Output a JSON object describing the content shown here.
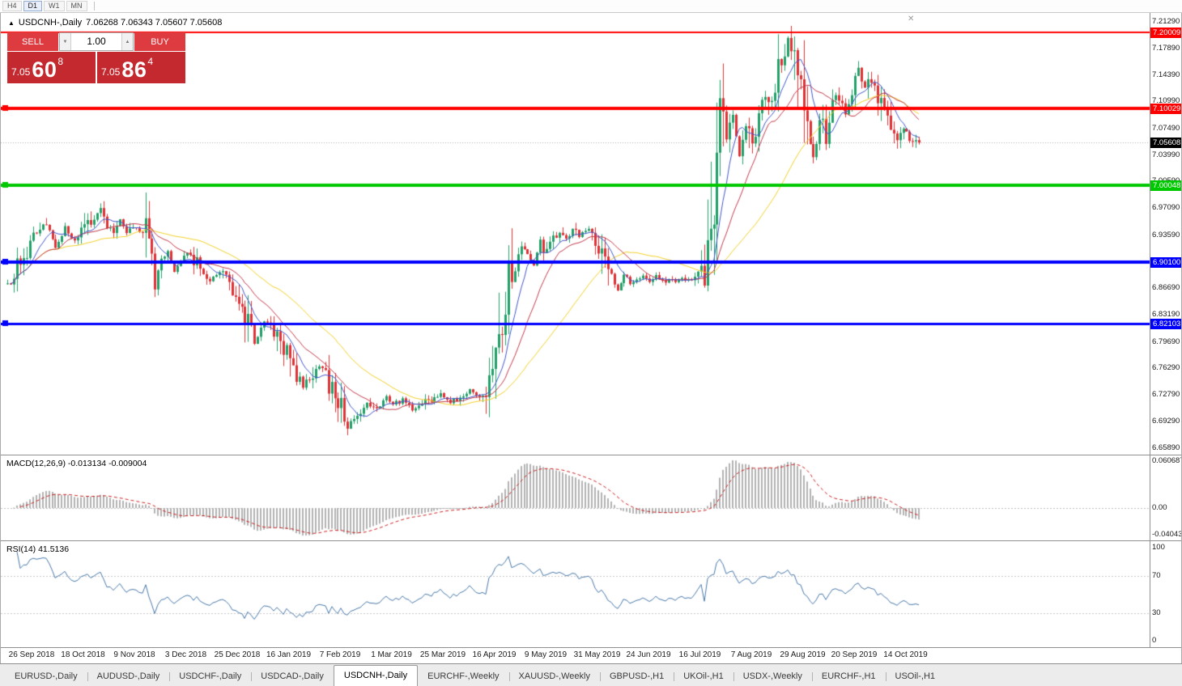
{
  "toolbar": {
    "timeframes": [
      "H4",
      "D1",
      "W1",
      "MN"
    ],
    "active": "D1"
  },
  "chart_header": {
    "collapse_icon": "▲",
    "symbol_period": "USDCNH-,Daily",
    "ohlc": "7.06268 7.06343 7.05607 7.05608"
  },
  "one_click": {
    "sell_label": "SELL",
    "buy_label": "BUY",
    "volume": "1.00",
    "vol_down_icon": "▼",
    "vol_up_icon": "▲",
    "sell_price_prefix": "7.05",
    "sell_price_big": "60",
    "sell_price_sup": "8",
    "buy_price_prefix": "7.05",
    "buy_price_big": "86",
    "buy_price_sup": "4",
    "button_color": "#DD3B40",
    "price_box_color": "#C4292F"
  },
  "price_axis": {
    "labels": [
      "7.21290",
      "7.17890",
      "7.14390",
      "7.10990",
      "7.07490",
      "7.03990",
      "7.00590",
      "6.97090",
      "6.93590",
      "6.90190",
      "6.86690",
      "6.83190",
      "6.79690",
      "6.76290",
      "6.72790",
      "6.69290",
      "6.65890"
    ]
  },
  "hlines": [
    {
      "price": 7.20009,
      "label": "7.20009",
      "color": "#FF0000",
      "width": 2,
      "handle": false
    },
    {
      "price": 7.10029,
      "label": "7.10029",
      "color": "#FF0000",
      "width": 4,
      "handle": true
    },
    {
      "price": 7.00048,
      "label": "7.00048",
      "color": "#00C800",
      "width": 4,
      "handle": true
    },
    {
      "price": 6.901,
      "label": "6.90100",
      "color": "#0000FF",
      "width": 4,
      "handle": true
    },
    {
      "price": 6.82103,
      "label": "6.82103",
      "color": "#0000FF",
      "width": 3,
      "handle": true
    }
  ],
  "bid": {
    "price": 7.05608,
    "label": "7.05608",
    "tag_bg": "#000000"
  },
  "macd_panel": {
    "label": "MACD(12,26,9) -0.013134 -0.009004",
    "axis_top": "0.060687",
    "axis_zero": "0.00",
    "axis_bottom": "-0.04043"
  },
  "rsi_panel": {
    "label": "RSI(14) 41.5136",
    "axis_labels": [
      {
        "text": "100",
        "value": 100
      },
      {
        "text": "70",
        "value": 70
      },
      {
        "text": "30",
        "value": 30
      },
      {
        "text": "0",
        "value": 0
      }
    ],
    "levels": [
      70,
      30
    ]
  },
  "date_axis": {
    "labels": [
      "26 Sep 2018",
      "18 Oct 2018",
      "9 Nov 2018",
      "3 Dec 2018",
      "25 Dec 2018",
      "16 Jan 2019",
      "7 Feb 2019",
      "1 Mar 2019",
      "25 Mar 2019",
      "16 Apr 2019",
      "9 May 2019",
      "31 May 2019",
      "24 Jun 2019",
      "16 Jul 2019",
      "7 Aug 2019",
      "29 Aug 2019",
      "20 Sep 2019",
      "14 Oct 2019"
    ]
  },
  "tabs": {
    "active_index": 4,
    "items": [
      "EURUSD-,Daily",
      "AUDUSD-,Daily",
      "USDCHF-,Daily",
      "USDCAD-,Daily",
      "USDCNH-,Daily",
      "EURCHF-,Weekly",
      "XAUUSD-,Weekly",
      "GBPUSD-,H1",
      "UKOil-,H1",
      "USDX-,Weekly",
      "EURCHF-,H1",
      "USOil-,H1"
    ]
  },
  "chart_data": {
    "type": "candlestick",
    "symbol": "USDCNH",
    "timeframe": "Daily",
    "title": "USDCNH-,Daily",
    "last_quote": {
      "open": 7.06268,
      "high": 7.06343,
      "low": 7.05607,
      "close": 7.05608
    },
    "visible_range": {
      "price_min": 6.65,
      "price_max": 7.225
    },
    "candle_count": 285,
    "ma_periods": {
      "fast": 8,
      "mid": 17,
      "slow": 38
    },
    "indicators": {
      "macd": "12,26,9",
      "macd_values": [
        -0.013134,
        -0.009004
      ],
      "rsi_period": 14,
      "rsi_value": 41.5136
    },
    "colors": {
      "up": "#22A06A",
      "down": "#E03236",
      "ma_fast": "#4056C8",
      "ma_mid": "#C13A4B",
      "ma_slow": "#F2CF27",
      "macd_hist": "#B2B2B2",
      "macd_signal": "#CC2222",
      "rsi": "#4878A8",
      "bid_line": "#AFAFAF"
    },
    "price_path_anchors": [
      [
        0,
        6.872
      ],
      [
        3,
        6.896
      ],
      [
        6,
        6.916
      ],
      [
        9,
        6.942
      ],
      [
        12,
        6.952
      ],
      [
        15,
        6.921
      ],
      [
        18,
        6.944
      ],
      [
        21,
        6.928
      ],
      [
        24,
        6.946
      ],
      [
        27,
        6.958
      ],
      [
        29,
        6.974
      ],
      [
        31,
        6.949
      ],
      [
        33,
        6.942
      ],
      [
        35,
        6.956
      ],
      [
        37,
        6.938
      ],
      [
        40,
        6.946
      ],
      [
        43,
        6.938
      ],
      [
        45,
        6.918
      ],
      [
        46,
        6.872
      ],
      [
        48,
        6.902
      ],
      [
        50,
        6.913
      ],
      [
        52,
        6.887
      ],
      [
        54,
        6.902
      ],
      [
        56,
        6.912
      ],
      [
        58,
        6.902
      ],
      [
        60,
        6.892
      ],
      [
        62,
        6.874
      ],
      [
        64,
        6.882
      ],
      [
        67,
        6.886
      ],
      [
        70,
        6.867
      ],
      [
        73,
        6.852
      ],
      [
        75,
        6.822
      ],
      [
        77,
        6.796
      ],
      [
        79,
        6.812
      ],
      [
        81,
        6.824
      ],
      [
        84,
        6.806
      ],
      [
        86,
        6.787
      ],
      [
        88,
        6.774
      ],
      [
        90,
        6.752
      ],
      [
        92,
        6.738
      ],
      [
        94,
        6.752
      ],
      [
        96,
        6.762
      ],
      [
        98,
        6.768
      ],
      [
        100,
        6.742
      ],
      [
        102,
        6.726
      ],
      [
        104,
        6.716
      ],
      [
        106,
        6.684
      ],
      [
        108,
        6.696
      ],
      [
        110,
        6.708
      ],
      [
        112,
        6.718
      ],
      [
        114,
        6.71
      ],
      [
        116,
        6.716
      ],
      [
        118,
        6.726
      ],
      [
        120,
        6.714
      ],
      [
        123,
        6.722
      ],
      [
        126,
        6.71
      ],
      [
        129,
        6.716
      ],
      [
        132,
        6.722
      ],
      [
        135,
        6.729
      ],
      [
        138,
        6.718
      ],
      [
        141,
        6.726
      ],
      [
        144,
        6.734
      ],
      [
        147,
        6.722
      ],
      [
        150,
        6.742
      ],
      [
        152,
        6.772
      ],
      [
        154,
        6.822
      ],
      [
        156,
        6.882
      ],
      [
        158,
        6.904
      ],
      [
        160,
        6.922
      ],
      [
        162,
        6.912
      ],
      [
        164,
        6.898
      ],
      [
        166,
        6.926
      ],
      [
        168,
        6.912
      ],
      [
        170,
        6.932
      ],
      [
        172,
        6.94
      ],
      [
        174,
        6.93
      ],
      [
        176,
        6.944
      ],
      [
        178,
        6.932
      ],
      [
        180,
        6.944
      ],
      [
        182,
        6.936
      ],
      [
        184,
        6.922
      ],
      [
        186,
        6.904
      ],
      [
        188,
        6.878
      ],
      [
        190,
        6.864
      ],
      [
        192,
        6.882
      ],
      [
        194,
        6.874
      ],
      [
        196,
        6.879
      ],
      [
        198,
        6.884
      ],
      [
        200,
        6.876
      ],
      [
        202,
        6.882
      ],
      [
        204,
        6.875
      ],
      [
        206,
        6.88
      ],
      [
        208,
        6.874
      ],
      [
        210,
        6.88
      ],
      [
        212,
        6.876
      ],
      [
        214,
        6.881
      ],
      [
        216,
        6.884
      ],
      [
        218,
        6.894
      ],
      [
        219,
        6.924
      ],
      [
        220,
        6.974
      ],
      [
        221,
        7.044
      ],
      [
        222,
        7.084
      ],
      [
        224,
        7.058
      ],
      [
        226,
        7.092
      ],
      [
        228,
        7.038
      ],
      [
        230,
        7.074
      ],
      [
        232,
        7.058
      ],
      [
        234,
        7.092
      ],
      [
        236,
        7.126
      ],
      [
        238,
        7.102
      ],
      [
        240,
        7.152
      ],
      [
        242,
        7.176
      ],
      [
        243,
        7.192
      ],
      [
        245,
        7.162
      ],
      [
        247,
        7.128
      ],
      [
        249,
        7.062
      ],
      [
        251,
        7.032
      ],
      [
        253,
        7.078
      ],
      [
        255,
        7.068
      ],
      [
        257,
        7.106
      ],
      [
        259,
        7.118
      ],
      [
        261,
        7.096
      ],
      [
        263,
        7.122
      ],
      [
        265,
        7.146
      ],
      [
        267,
        7.128
      ],
      [
        269,
        7.138
      ],
      [
        271,
        7.118
      ],
      [
        273,
        7.102
      ],
      [
        275,
        7.082
      ],
      [
        277,
        7.064
      ],
      [
        279,
        7.076
      ],
      [
        281,
        7.062
      ],
      [
        284,
        7.05608
      ]
    ]
  }
}
